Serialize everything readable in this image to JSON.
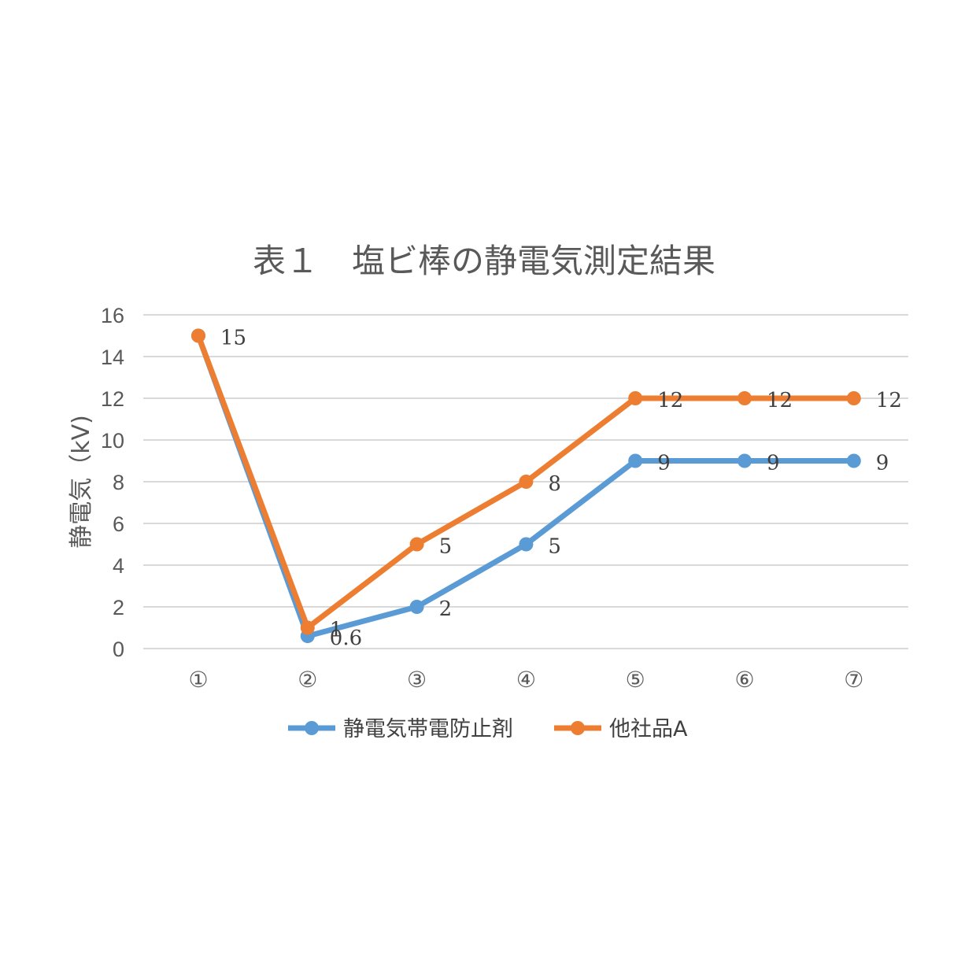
{
  "chart_data": {
    "type": "line",
    "title": "表１　塩ビ棒の静電気測定結果",
    "ylabel": "静電気（kV)",
    "xlabel": "",
    "categories": [
      "①",
      "②",
      "③",
      "④",
      "⑤",
      "⑥",
      "⑦"
    ],
    "ylim": [
      0,
      16
    ],
    "yticks": [
      0,
      2,
      4,
      6,
      8,
      10,
      12,
      14,
      16
    ],
    "grid": true,
    "legend_position": "bottom",
    "series": [
      {
        "name": "静電気帯電防止剤",
        "color": "#5b9bd5",
        "values": [
          15,
          0.6,
          2,
          5,
          9,
          9,
          9
        ],
        "labels": [
          "",
          "0.6",
          "2",
          "5",
          "9",
          "9",
          "9"
        ]
      },
      {
        "name": "他社品A",
        "color": "#ed7d31",
        "values": [
          15,
          1,
          5,
          8,
          12,
          12,
          12
        ],
        "labels": [
          "15",
          "1",
          "5",
          "8",
          "12",
          "12",
          "12"
        ]
      }
    ]
  }
}
